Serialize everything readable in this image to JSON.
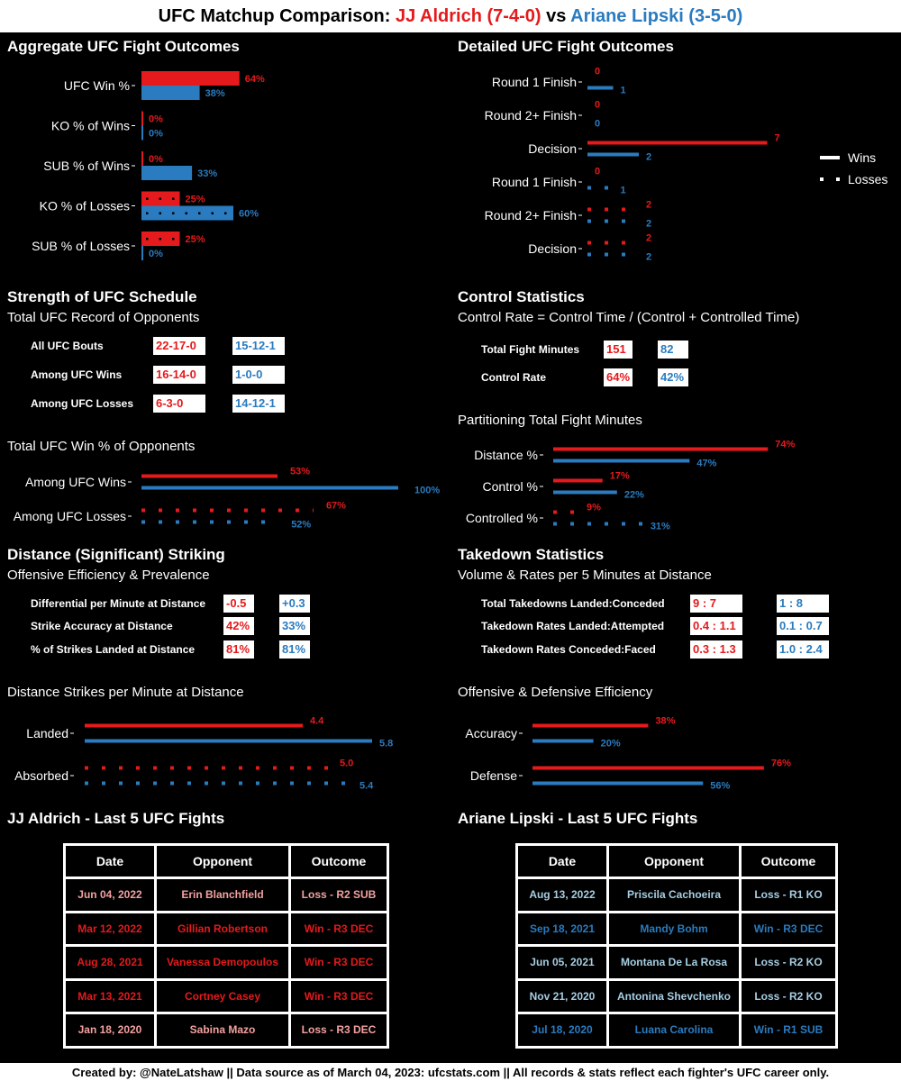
{
  "colors": {
    "red": "#e41a1c",
    "blue": "#2a7bbf",
    "light_red": "#f4a0a0",
    "light_blue": "#a6cee3"
  },
  "header": {
    "prefix": "UFC Matchup Comparison: ",
    "fighter1": "JJ Aldrich (7-4-0)",
    "vs": " vs ",
    "fighter2": "Ariane Lipski (3-5-0)"
  },
  "sections": {
    "aggregate": "Aggregate UFC Fight Outcomes",
    "detailed": "Detailed UFC Fight Outcomes",
    "schedule": "Strength of UFC Schedule",
    "schedule_sub": "Total UFC Record of Opponents",
    "schedule_winpct_sub": "Total UFC Win % of Opponents",
    "control": "Control Statistics",
    "control_sub": "Control Rate = Control Time / (Control + Controlled Time)",
    "partition_sub": "Partitioning Total Fight Minutes",
    "striking": "Distance (Significant) Striking",
    "striking_sub": "Offensive Efficiency & Prevalence",
    "strikes_pm_sub": "Distance Strikes per Minute at Distance",
    "takedown": "Takedown Statistics",
    "takedown_sub": "Volume & Rates per 5 Minutes at Distance",
    "off_def_sub": "Offensive & Defensive Efficiency",
    "last5_f1": "JJ Aldrich - Last 5 UFC Fights",
    "last5_f2": "Ariane Lipski - Last 5 UFC Fights"
  },
  "legend": {
    "wins": "Wins",
    "losses": "Losses"
  },
  "opp_records": [
    {
      "label": "All UFC Bouts",
      "f1": "22-17-0",
      "f2": "15-12-1"
    },
    {
      "label": "Among UFC Wins",
      "f1": "16-14-0",
      "f2": "1-0-0"
    },
    {
      "label": "Among UFC Losses",
      "f1": "6-3-0",
      "f2": "14-12-1"
    }
  ],
  "control_stats": [
    {
      "label": "Total Fight Minutes",
      "f1": "151",
      "f2": "82"
    },
    {
      "label": "Control Rate",
      "f1": "64%",
      "f2": "42%"
    }
  ],
  "striking_stats": [
    {
      "label": "Differential per Minute at Distance",
      "f1": "-0.5",
      "f2": "+0.3"
    },
    {
      "label": "Strike Accuracy at Distance",
      "f1": "42%",
      "f2": "33%"
    },
    {
      "label": "% of Strikes Landed at Distance",
      "f1": "81%",
      "f2": "81%"
    }
  ],
  "takedown_stats": [
    {
      "label": "Total Takedowns Landed:Conceded",
      "f1": "9 : 7",
      "f2": "1 : 8"
    },
    {
      "label": "Takedown Rates Landed:Attempted",
      "f1": "0.4 : 1.1",
      "f2": "0.1 : 0.7"
    },
    {
      "label": "Takedown Rates Conceded:Faced",
      "f1": "0.3 : 1.3",
      "f2": "1.0 : 2.4"
    }
  ],
  "chart_data": [
    {
      "id": "aggregate",
      "type": "bar",
      "xlim": [
        0,
        100
      ],
      "categories": [
        "UFC Win %",
        "KO % of Wins",
        "SUB % of Wins",
        "KO % of Losses",
        "SUB % of Losses"
      ],
      "series": [
        {
          "values": [
            64,
            0,
            0,
            25,
            25
          ]
        },
        {
          "values": [
            38,
            0,
            33,
            60,
            0
          ]
        }
      ],
      "labels_f1": [
        "64%",
        "0%",
        "0%",
        "25%",
        "25%"
      ],
      "labels_f2": [
        "38%",
        "0%",
        "33%",
        "60%",
        "0%"
      ],
      "styles": [
        "solid",
        "solid",
        "solid",
        "dotted",
        "dotted"
      ]
    },
    {
      "id": "detailed",
      "type": "line",
      "xlim": [
        0,
        8
      ],
      "categories": [
        "Round 1 Finish",
        "Round 2+ Finish",
        "Decision",
        "Round 1 Finish",
        "Round 2+ Finish",
        "Decision"
      ],
      "series": [
        {
          "values": [
            0,
            0,
            7,
            0,
            2,
            2
          ]
        },
        {
          "values": [
            1,
            0,
            2,
            1,
            2,
            2
          ]
        }
      ],
      "labels_f1": [
        "0",
        "0",
        "7",
        "0",
        "2",
        "2"
      ],
      "labels_f2": [
        "1",
        "0",
        "2",
        "1",
        "2",
        "2"
      ],
      "styles": [
        "solid",
        "solid",
        "solid",
        "dotted",
        "dotted",
        "dotted"
      ]
    },
    {
      "id": "opp_winpct",
      "type": "line",
      "xlim": [
        0,
        100
      ],
      "categories": [
        "Among UFC Wins",
        "Among UFC Losses"
      ],
      "series": [
        {
          "values": [
            53,
            67
          ]
        },
        {
          "values": [
            100,
            52
          ]
        }
      ],
      "labels_f1": [
        "53%",
        "67%"
      ],
      "labels_f2": [
        "100%",
        "52%"
      ],
      "styles": [
        "solid",
        "dotted"
      ]
    },
    {
      "id": "partition",
      "type": "line",
      "xlim": [
        0,
        100
      ],
      "categories": [
        "Distance %",
        "Control %",
        "Controlled %"
      ],
      "series": [
        {
          "values": [
            74,
            17,
            9
          ]
        },
        {
          "values": [
            47,
            22,
            31
          ]
        }
      ],
      "labels_f1": [
        "74%",
        "17%",
        "9%"
      ],
      "labels_f2": [
        "47%",
        "22%",
        "31%"
      ],
      "styles": [
        "solid",
        "solid",
        "dotted"
      ]
    },
    {
      "id": "strikes_pm",
      "type": "line",
      "xlim": [
        0,
        6
      ],
      "categories": [
        "Landed",
        "Absorbed"
      ],
      "series": [
        {
          "values": [
            4.4,
            5.0
          ]
        },
        {
          "values": [
            5.8,
            5.4
          ]
        }
      ],
      "labels_f1": [
        "4.4",
        "5.0"
      ],
      "labels_f2": [
        "5.8",
        "5.4"
      ],
      "styles": [
        "solid",
        "dotted"
      ]
    },
    {
      "id": "off_def",
      "type": "line",
      "xlim": [
        0,
        100
      ],
      "categories": [
        "Accuracy",
        "Defense"
      ],
      "series": [
        {
          "values": [
            38,
            76
          ]
        },
        {
          "values": [
            20,
            56
          ]
        }
      ],
      "labels_f1": [
        "38%",
        "76%"
      ],
      "labels_f2": [
        "20%",
        "56%"
      ],
      "styles": [
        "solid",
        "solid"
      ]
    }
  ],
  "fights_f1": {
    "headers": [
      "Date",
      "Opponent",
      "Outcome"
    ],
    "rows": [
      {
        "date": "Jun 04, 2022",
        "opponent": "Erin Blanchfield",
        "outcome": "Loss - R2 SUB",
        "win": false
      },
      {
        "date": "Mar 12, 2022",
        "opponent": "Gillian Robertson",
        "outcome": "Win - R3 DEC",
        "win": true
      },
      {
        "date": "Aug 28, 2021",
        "opponent": "Vanessa Demopoulos",
        "outcome": "Win - R3 DEC",
        "win": true
      },
      {
        "date": "Mar 13, 2021",
        "opponent": "Cortney Casey",
        "outcome": "Win - R3 DEC",
        "win": true
      },
      {
        "date": "Jan 18, 2020",
        "opponent": "Sabina Mazo",
        "outcome": "Loss - R3 DEC",
        "win": false
      }
    ]
  },
  "fights_f2": {
    "headers": [
      "Date",
      "Opponent",
      "Outcome"
    ],
    "rows": [
      {
        "date": "Aug 13, 2022",
        "opponent": "Priscila Cachoeira",
        "outcome": "Loss - R1 KO",
        "win": false
      },
      {
        "date": "Sep 18, 2021",
        "opponent": "Mandy Bohm",
        "outcome": "Win - R3 DEC",
        "win": true
      },
      {
        "date": "Jun 05, 2021",
        "opponent": "Montana De La Rosa",
        "outcome": "Loss - R2 KO",
        "win": false
      },
      {
        "date": "Nov 21, 2020",
        "opponent": "Antonina Shevchenko",
        "outcome": "Loss - R2 KO",
        "win": false
      },
      {
        "date": "Jul 18, 2020",
        "opponent": "Luana Carolina",
        "outcome": "Win - R1 SUB",
        "win": true
      }
    ]
  },
  "footer": "Created by: @NateLatshaw || Data source as of March 04, 2023: ufcstats.com || All records & stats reflect each fighter's UFC career only."
}
